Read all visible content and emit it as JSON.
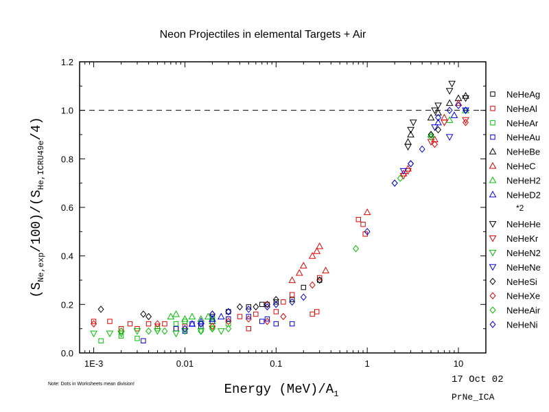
{
  "chart_data": {
    "type": "scatter",
    "title": "Neon Projectiles in elemental Targets + Air",
    "xlabel": {
      "pre": "Energy (MeV)/A",
      "sub": "1"
    },
    "ylabel": {
      "p1": "(S",
      "s1": "Ne,exp",
      "p2": "/100)/(S",
      "s2": "He,ICRU49e",
      "p3": "/4)"
    },
    "x_scale": "log",
    "xlim": [
      0.0007,
      20
    ],
    "ylim": [
      0.0,
      1.2
    ],
    "x_ticks": [
      {
        "value": 0.001,
        "label": "1E-3"
      },
      {
        "value": 0.01,
        "label": "0.01"
      },
      {
        "value": 0.1,
        "label": "0.1"
      },
      {
        "value": 1,
        "label": "1"
      },
      {
        "value": 10,
        "label": "10"
      }
    ],
    "y_ticks": [
      {
        "value": 0.0,
        "label": "0.0"
      },
      {
        "value": 0.2,
        "label": "0.2"
      },
      {
        "value": 0.4,
        "label": "0.4"
      },
      {
        "value": 0.6,
        "label": "0.6"
      },
      {
        "value": 0.8,
        "label": "0.8"
      },
      {
        "value": 1.0,
        "label": "1.0"
      },
      {
        "value": 1.2,
        "label": "1.2"
      }
    ],
    "reference_line": {
      "y": 1.0,
      "style": "dashed"
    },
    "grid": false,
    "legend_position": "right",
    "legend_note": "*2",
    "series": [
      {
        "name": "NeHeAg",
        "marker": "square",
        "color": "#000000",
        "points": [
          [
            0.02,
            0.15
          ],
          [
            0.03,
            0.17
          ],
          [
            0.05,
            0.19
          ],
          [
            0.07,
            0.2
          ],
          [
            0.1,
            0.21
          ],
          [
            0.15,
            0.22
          ],
          [
            0.2,
            0.27
          ],
          [
            0.3,
            0.3
          ]
        ]
      },
      {
        "name": "NeHeAl",
        "marker": "square",
        "color": "#e00000",
        "points": [
          [
            0.001,
            0.13
          ],
          [
            0.0015,
            0.13
          ],
          [
            0.002,
            0.1
          ],
          [
            0.0025,
            0.12
          ],
          [
            0.003,
            0.1
          ],
          [
            0.004,
            0.12
          ],
          [
            0.005,
            0.11
          ],
          [
            0.006,
            0.12
          ],
          [
            0.008,
            0.1
          ],
          [
            0.01,
            0.11
          ],
          [
            0.015,
            0.12
          ],
          [
            0.02,
            0.13
          ],
          [
            0.03,
            0.14
          ],
          [
            0.04,
            0.15
          ],
          [
            0.05,
            0.1
          ],
          [
            0.06,
            0.16
          ],
          [
            0.08,
            0.2
          ],
          [
            0.1,
            0.17
          ],
          [
            0.12,
            0.21
          ],
          [
            0.15,
            0.24
          ],
          [
            0.25,
            0.16
          ],
          [
            0.28,
            0.17
          ],
          [
            0.3,
            0.31
          ],
          [
            0.8,
            0.55
          ],
          [
            0.9,
            0.53
          ],
          [
            0.95,
            0.49
          ]
        ]
      },
      {
        "name": "NeHeAr",
        "marker": "square",
        "color": "#00c000",
        "points": [
          [
            0.0012,
            0.05
          ],
          [
            0.002,
            0.07
          ],
          [
            0.003,
            0.06
          ],
          [
            0.005,
            0.1
          ],
          [
            0.008,
            0.12
          ],
          [
            0.01,
            0.13
          ],
          [
            0.015,
            0.12
          ],
          [
            0.02,
            0.14
          ],
          [
            0.03,
            0.12
          ]
        ]
      },
      {
        "name": "NeHeAu",
        "marker": "square",
        "color": "#0000e0",
        "points": [
          [
            0.0035,
            0.05
          ],
          [
            0.008,
            0.1
          ],
          [
            0.01,
            0.09
          ],
          [
            0.012,
            0.12
          ],
          [
            0.015,
            0.11
          ],
          [
            0.02,
            0.13
          ],
          [
            0.03,
            0.14
          ],
          [
            0.05,
            0.15
          ],
          [
            0.07,
            0.13
          ],
          [
            0.08,
            0.14
          ],
          [
            0.1,
            0.12
          ],
          [
            0.15,
            0.12
          ]
        ]
      },
      {
        "name": "NeHeBe",
        "marker": "triangle-up",
        "color": "#000000",
        "points": [
          [
            2.8,
            0.87
          ],
          [
            3.0,
            0.9
          ],
          [
            5.0,
            0.97
          ],
          [
            6.0,
            0.99
          ],
          [
            8.0,
            1.03
          ],
          [
            10.0,
            1.05
          ],
          [
            12.0,
            1.06
          ]
        ]
      },
      {
        "name": "NeHeC",
        "marker": "triangle-up",
        "color": "#e00000",
        "points": [
          [
            0.15,
            0.3
          ],
          [
            0.18,
            0.33
          ],
          [
            0.2,
            0.36
          ],
          [
            0.25,
            0.4
          ],
          [
            0.28,
            0.42
          ],
          [
            0.3,
            0.44
          ],
          [
            0.35,
            0.34
          ],
          [
            1.0,
            0.58
          ],
          [
            2.5,
            0.74
          ],
          [
            2.8,
            0.76
          ],
          [
            5.5,
            0.88
          ],
          [
            7.0,
            0.97
          ],
          [
            10.0,
            1.03
          ]
        ]
      },
      {
        "name": "NeHeH2",
        "marker": "triangle-up",
        "color": "#00c000",
        "points": [
          [
            0.007,
            0.15
          ],
          [
            0.008,
            0.16
          ],
          [
            0.01,
            0.14
          ],
          [
            0.012,
            0.15
          ],
          [
            0.015,
            0.14
          ],
          [
            0.018,
            0.15
          ],
          [
            0.02,
            0.13
          ],
          [
            5.0,
            0.9
          ],
          [
            8.0,
            0.96
          ],
          [
            12.0,
            1.0
          ]
        ]
      },
      {
        "name": "NeHeD2",
        "marker": "triangle-up",
        "color": "#0000e0",
        "points": [
          [
            0.012,
            0.12
          ],
          [
            0.015,
            0.13
          ],
          [
            0.02,
            0.14
          ],
          [
            0.025,
            0.15
          ],
          [
            6.0,
            0.95
          ],
          [
            9.0,
            0.98
          ]
        ]
      },
      {
        "name": "NeHeHe",
        "marker": "triangle-down",
        "color": "#000000",
        "points": [
          [
            2.8,
            0.85
          ],
          [
            3.0,
            0.92
          ],
          [
            3.2,
            0.95
          ],
          [
            5.5,
            1.0
          ],
          [
            6.0,
            1.02
          ],
          [
            8.0,
            1.08
          ],
          [
            8.5,
            1.11
          ],
          [
            12.0,
            1.05
          ]
        ]
      },
      {
        "name": "NeHeKr",
        "marker": "triangle-down",
        "color": "#e00000",
        "points": [
          [
            2.5,
            0.73
          ],
          [
            2.8,
            0.75
          ],
          [
            5.0,
            0.87
          ],
          [
            7.0,
            0.95
          ],
          [
            12.0,
            0.96
          ]
        ]
      },
      {
        "name": "NeHeN2",
        "marker": "triangle-down",
        "color": "#00c000",
        "points": [
          [
            0.001,
            0.08
          ],
          [
            0.0015,
            0.08
          ],
          [
            0.002,
            0.08
          ],
          [
            0.003,
            0.09
          ],
          [
            0.005,
            0.09
          ],
          [
            0.008,
            0.08
          ],
          [
            0.01,
            0.09
          ],
          [
            0.015,
            0.09
          ],
          [
            0.02,
            0.1
          ],
          [
            0.025,
            0.09
          ]
        ]
      },
      {
        "name": "NeHeNe",
        "marker": "triangle-down",
        "color": "#0000e0",
        "points": [
          [
            2.5,
            0.75
          ],
          [
            5.5,
            0.93
          ],
          [
            8.0,
            0.89
          ],
          [
            12.0,
            1.0
          ]
        ]
      },
      {
        "name": "NeHeSi",
        "marker": "diamond",
        "color": "#000000",
        "points": [
          [
            0.0012,
            0.18
          ],
          [
            0.0035,
            0.16
          ],
          [
            0.004,
            0.15
          ],
          [
            0.02,
            0.16
          ],
          [
            0.03,
            0.17
          ],
          [
            0.04,
            0.19
          ],
          [
            0.06,
            0.19
          ],
          [
            0.08,
            0.2
          ],
          [
            0.1,
            0.22
          ],
          [
            0.3,
            0.3
          ],
          [
            3.0,
            0.78
          ],
          [
            5.0,
            0.9
          ],
          [
            6.0,
            0.92
          ]
        ]
      },
      {
        "name": "NeHeXe",
        "marker": "diamond",
        "color": "#e00000",
        "points": [
          [
            0.001,
            0.12
          ],
          [
            0.002,
            0.09
          ],
          [
            0.005,
            0.12
          ],
          [
            0.01,
            0.1
          ],
          [
            0.02,
            0.11
          ],
          [
            0.03,
            0.13
          ],
          [
            0.05,
            0.14
          ],
          [
            0.08,
            0.13
          ],
          [
            0.12,
            0.15
          ],
          [
            0.25,
            0.28
          ],
          [
            5.5,
            0.86
          ],
          [
            12.0,
            0.95
          ]
        ]
      },
      {
        "name": "NeHeAir",
        "marker": "diamond",
        "color": "#00c000",
        "points": [
          [
            0.002,
            0.09
          ],
          [
            0.004,
            0.09
          ],
          [
            0.006,
            0.09
          ],
          [
            0.01,
            0.1
          ],
          [
            0.015,
            0.09
          ],
          [
            0.02,
            0.1
          ],
          [
            0.03,
            0.1
          ],
          [
            0.75,
            0.43
          ],
          [
            2.0,
            0.7
          ],
          [
            2.3,
            0.72
          ],
          [
            5.0,
            0.89
          ]
        ]
      },
      {
        "name": "NeHeNi",
        "marker": "diamond",
        "color": "#0000e0",
        "points": [
          [
            0.01,
            0.1
          ],
          [
            0.015,
            0.12
          ],
          [
            0.02,
            0.16
          ],
          [
            0.03,
            0.17
          ],
          [
            0.05,
            0.18
          ],
          [
            0.08,
            0.19
          ],
          [
            0.1,
            0.2
          ],
          [
            0.15,
            0.21
          ],
          [
            0.2,
            0.23
          ],
          [
            1.0,
            0.5
          ],
          [
            2.0,
            0.7
          ],
          [
            3.0,
            0.78
          ],
          [
            4.0,
            0.84
          ],
          [
            6.0,
            0.97
          ],
          [
            8.0,
            1.0
          ],
          [
            10.0,
            1.02
          ],
          [
            12.0,
            1.0
          ]
        ]
      }
    ]
  },
  "footer": {
    "note": "Note: Dots in Worksheets mean division!",
    "date": "17 Oct 02",
    "id": "PrNe_ICA"
  }
}
